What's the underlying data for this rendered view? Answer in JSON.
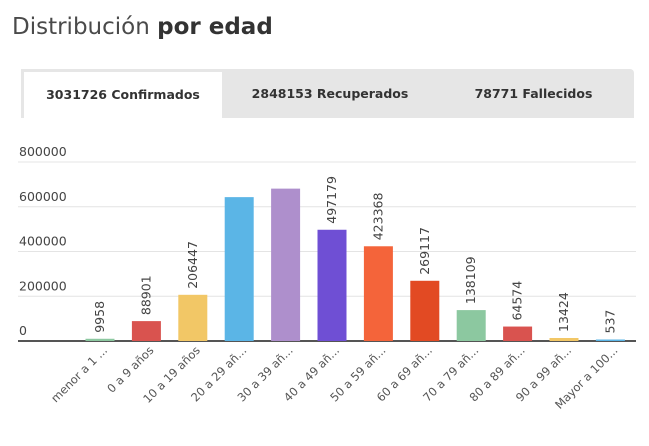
{
  "header": {
    "title_regular": "Distribución",
    "title_bold": "por edad"
  },
  "tabs": [
    {
      "label": "3031726 Confirmados",
      "active": true
    },
    {
      "label": "2848153 Recuperados",
      "active": false
    },
    {
      "label": "78771 Fallecidos",
      "active": false
    }
  ],
  "chart_data": {
    "type": "bar",
    "categories": [
      "menor a 1 ...",
      "0 a 9 años",
      "10 a 19 años",
      "20 a 29 añ...",
      "30 a 39 añ...",
      "40 a 49 añ...",
      "50 a 59 añ...",
      "60 a 69 añ...",
      "70 a 79 añ...",
      "80 a 89 añ...",
      "90 a 99 añ...",
      "Mayor a 100..."
    ],
    "values": [
      9958,
      88901,
      206447,
      643000,
      681000,
      497179,
      423368,
      269117,
      138109,
      64574,
      13424,
      537
    ],
    "data_labels": [
      "9958",
      "88901",
      "206447",
      "",
      "",
      "497179",
      "423368",
      "269117",
      "138109",
      "64574",
      "13424",
      "537"
    ],
    "colors": [
      "#8cc8a0",
      "#d9534f",
      "#f2c766",
      "#5bb5e6",
      "#ae8fcc",
      "#6f4fd4",
      "#f4643a",
      "#e24a23",
      "#8cc8a0",
      "#d9534f",
      "#f2c766",
      "#5bb5e6"
    ],
    "y_ticks": [
      "800000",
      "600000",
      "400000",
      "200000",
      "0"
    ],
    "ylim": [
      0,
      800000
    ],
    "grid": true
  }
}
